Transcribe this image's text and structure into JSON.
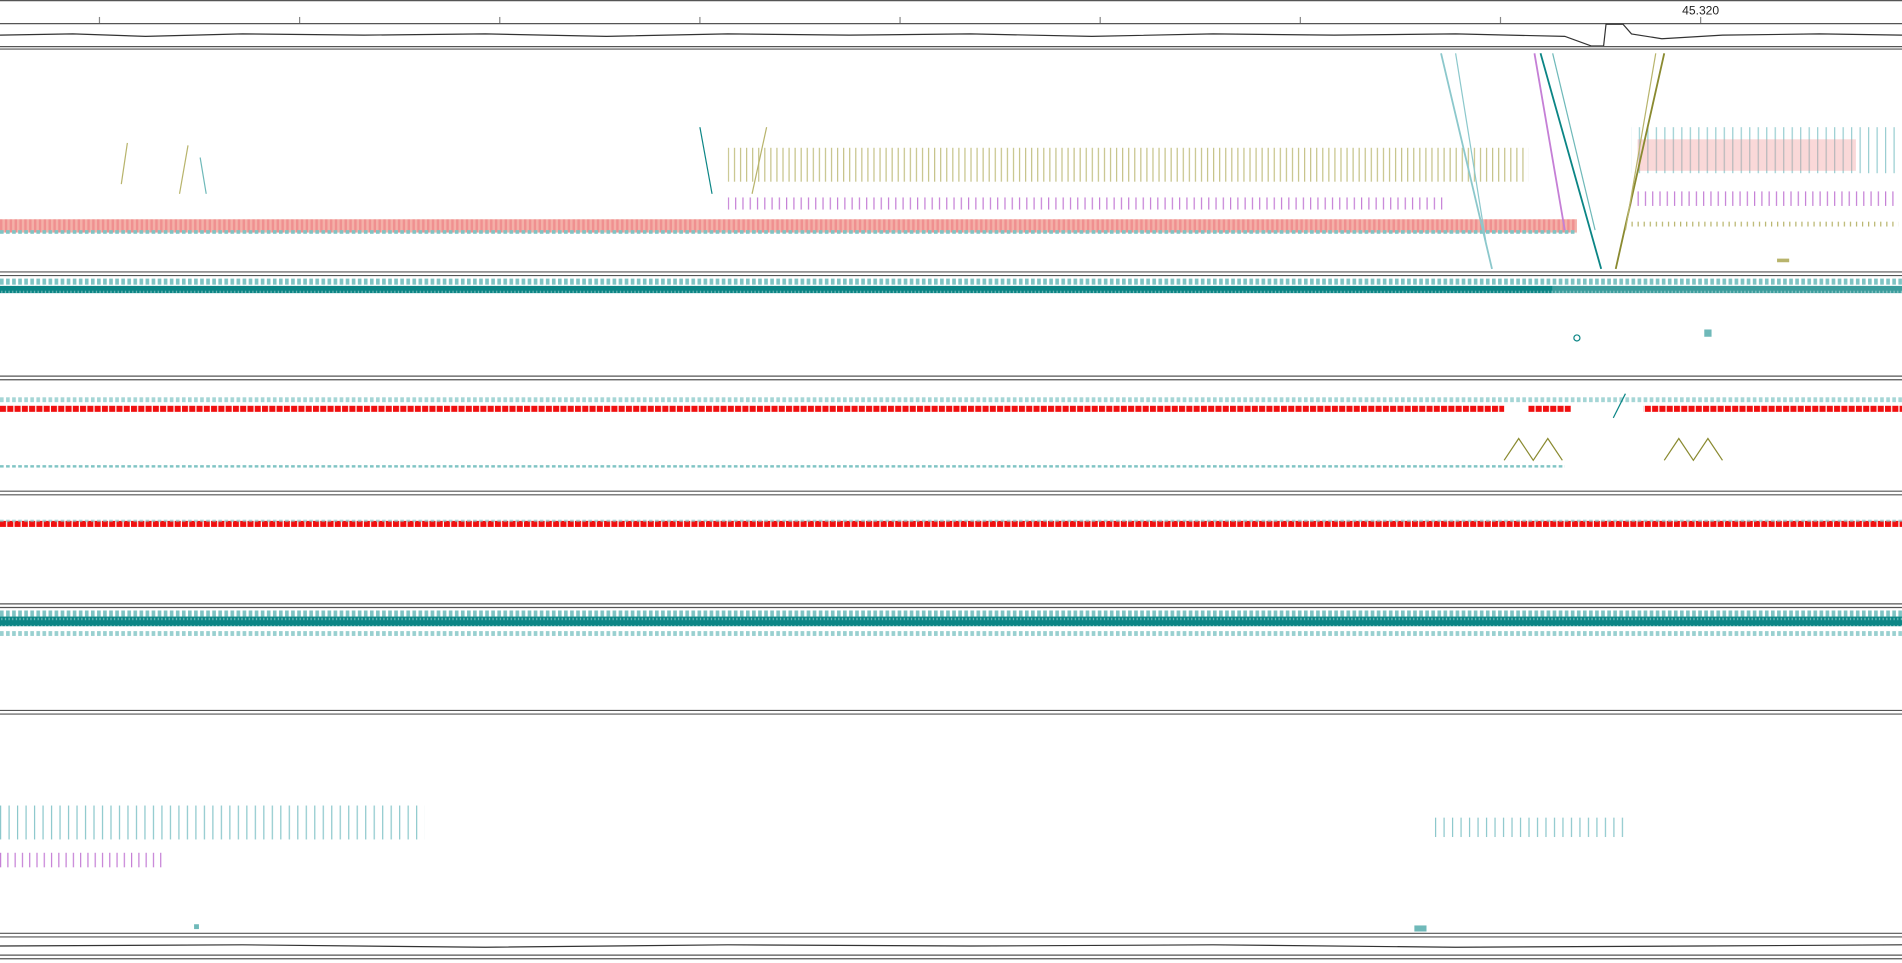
{
  "ruler": {
    "tick_label": "45.320"
  }
}
